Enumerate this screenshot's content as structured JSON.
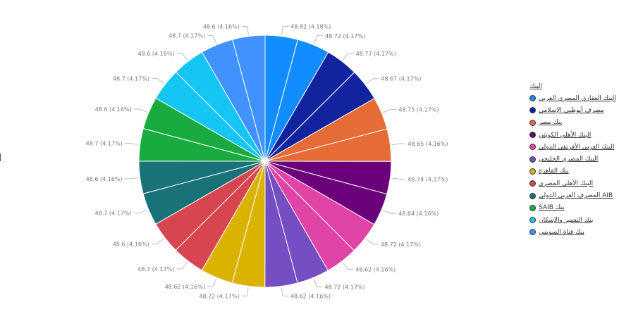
{
  "chart_data": {
    "type": "pie",
    "legend_title": "البنك",
    "legend_position": "right",
    "categories": [
      "البنك العقاري المصري العربي",
      "مصرف أبوظبي الإسلامي",
      "بنك مصر",
      "البنك الأهلي الكويتي",
      "البنك العربي الأفريقي الدولي",
      "البنك المصري الخليجي",
      "بنك القاهرة",
      "البنك الأهلي المصري",
      "AIB المصرف العربي الدولي",
      "بنك SAIB",
      "بنك التعمير والإسكان",
      "بنك قناة السويس"
    ],
    "colors": [
      "#118DFF",
      "#12239E",
      "#E66C37",
      "#6B007B",
      "#E044A7",
      "#744EC2",
      "#D9B300",
      "#D64550",
      "#197278",
      "#1AAB40",
      "#15C6F4",
      "#4092FF"
    ],
    "slices": [
      {
        "value": 48.82,
        "label": "48.82 (4.18%)",
        "cat": 0
      },
      {
        "value": 48.72,
        "label": "48.72 (4.17%)",
        "cat": 0
      },
      {
        "value": 48.77,
        "label": "48.77 (4.17%)",
        "cat": 1
      },
      {
        "value": 48.67,
        "label": "48.67 (4.17%)",
        "cat": 1
      },
      {
        "value": 48.75,
        "label": "48.75 (4.17%)",
        "cat": 2
      },
      {
        "value": 48.65,
        "label": "48.65 (4.16%)",
        "cat": 2
      },
      {
        "value": 48.74,
        "label": "48.74 (4.17%)",
        "cat": 3
      },
      {
        "value": 48.64,
        "label": "48.64 (4.16%)",
        "cat": 3
      },
      {
        "value": 48.72,
        "label": "48.72 (4.17%)",
        "cat": 4
      },
      {
        "value": 48.62,
        "label": "48.62 (4.16%)",
        "cat": 4
      },
      {
        "value": 48.72,
        "label": "48.72 (4.17%)",
        "cat": 5
      },
      {
        "value": 48.62,
        "label": "48.62 (4.16%)",
        "cat": 5
      },
      {
        "value": 48.72,
        "label": "48.72 (4.17%)",
        "cat": 6
      },
      {
        "value": 48.62,
        "label": "48.62 (4.16%)",
        "cat": 6
      },
      {
        "value": 48.7,
        "label": "48.7 (4.17%)",
        "cat": 7
      },
      {
        "value": 48.6,
        "label": "48.6 (4.16%)",
        "cat": 7
      },
      {
        "value": 48.7,
        "label": "48.7 (4.17%)",
        "cat": 8
      },
      {
        "value": 48.6,
        "label": "48.6 (4.16%)",
        "cat": 8
      },
      {
        "value": 48.7,
        "label": "48.7 (4.17%)",
        "cat": 9
      },
      {
        "value": 48.6,
        "label": "48.6 (4.16%)",
        "cat": 9
      },
      {
        "value": 48.7,
        "label": "48.7 (4.17%)",
        "cat": 10
      },
      {
        "value": 48.6,
        "label": "48.6 (4.16%)",
        "cat": 10
      },
      {
        "value": 48.7,
        "label": "48.7 (4.17%)",
        "cat": 11
      },
      {
        "value": 48.6,
        "label": "48.6 (4.16%)",
        "cat": 11
      }
    ]
  }
}
